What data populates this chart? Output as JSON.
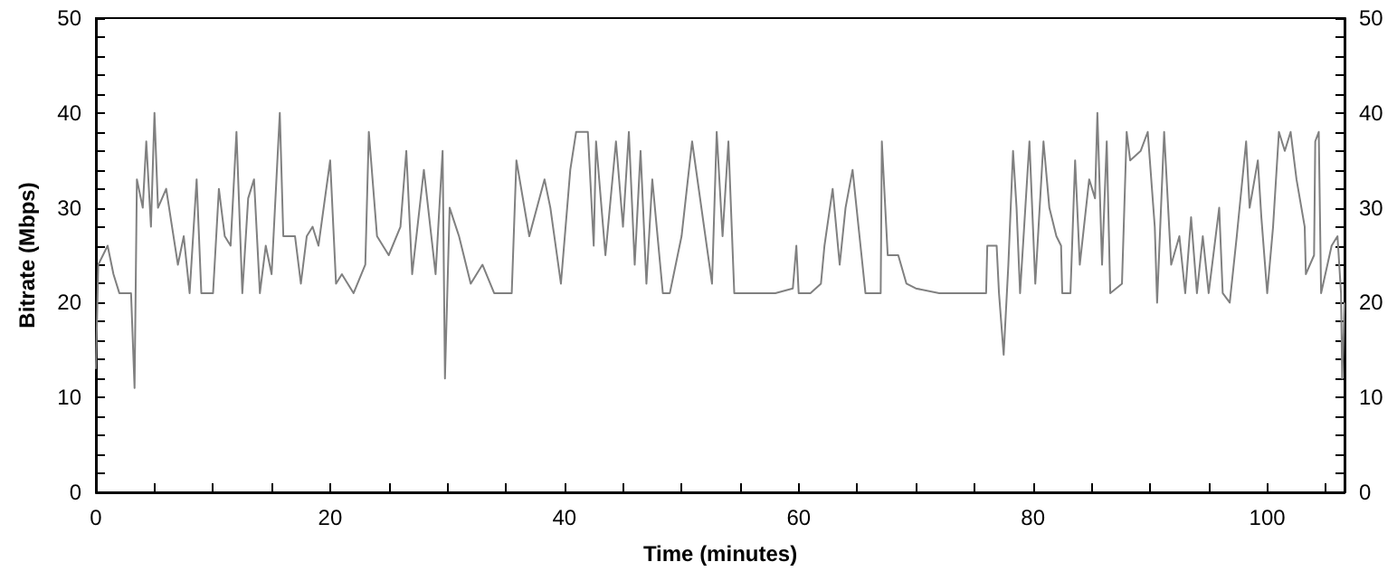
{
  "chart_data": {
    "type": "line",
    "xlabel": "Time (minutes)",
    "ylabel": "Bitrate (Mbps)",
    "xlim": [
      0,
      106.6
    ],
    "xticks": [
      0,
      {
        "value": 5,
        "label": null
      },
      {
        "value": 10,
        "label": null
      },
      {
        "value": 15,
        "label": null
      },
      20,
      {
        "value": 25,
        "label": null
      },
      {
        "value": 30,
        "label": null
      },
      {
        "value": 35,
        "label": null
      },
      40,
      {
        "value": 45,
        "label": null
      },
      {
        "value": 50,
        "label": null
      },
      {
        "value": 55,
        "label": null
      },
      60,
      {
        "value": 65,
        "label": null
      },
      {
        "value": 70,
        "label": null
      },
      {
        "value": 75,
        "label": null
      },
      80,
      {
        "value": 85,
        "label": null
      },
      {
        "value": 90,
        "label": null
      },
      {
        "value": 95,
        "label": null
      },
      100,
      {
        "value": 105,
        "label": null
      }
    ],
    "ylim": [
      0,
      50
    ],
    "yticks": [
      0,
      {
        "value": 2,
        "label": null
      },
      {
        "value": 4,
        "label": null
      },
      {
        "value": 6,
        "label": null
      },
      {
        "value": 8,
        "label": null
      },
      10,
      {
        "value": 12,
        "label": null
      },
      {
        "value": 14,
        "label": null
      },
      {
        "value": 16,
        "label": null
      },
      {
        "value": 18,
        "label": null
      },
      20,
      {
        "value": 22,
        "label": null
      },
      {
        "value": 24,
        "label": null
      },
      {
        "value": 26,
        "label": null
      },
      {
        "value": 28,
        "label": null
      },
      30,
      {
        "value": 32,
        "label": null
      },
      {
        "value": 34,
        "label": null
      },
      {
        "value": 36,
        "label": null
      },
      {
        "value": 38,
        "label": null
      },
      40,
      {
        "value": 42,
        "label": null
      },
      {
        "value": 44,
        "label": null
      },
      {
        "value": 46,
        "label": null
      },
      {
        "value": 48,
        "label": null
      },
      50
    ],
    "y2lim": [
      0,
      50
    ],
    "y2ticks": [
      0,
      {
        "value": 2,
        "label": null
      },
      {
        "value": 4,
        "label": null
      },
      {
        "value": 6,
        "label": null
      },
      {
        "value": 8,
        "label": null
      },
      10,
      {
        "value": 12,
        "label": null
      },
      {
        "value": 14,
        "label": null
      },
      {
        "value": 16,
        "label": null
      },
      {
        "value": 18,
        "label": null
      },
      20,
      {
        "value": 22,
        "label": null
      },
      {
        "value": 24,
        "label": null
      },
      {
        "value": 26,
        "label": null
      },
      {
        "value": 28,
        "label": null
      },
      30,
      {
        "value": 32,
        "label": null
      },
      {
        "value": 34,
        "label": null
      },
      {
        "value": 36,
        "label": null
      },
      {
        "value": 38,
        "label": null
      },
      40,
      {
        "value": 42,
        "label": null
      },
      {
        "value": 44,
        "label": null
      },
      {
        "value": 46,
        "label": null
      },
      {
        "value": 48,
        "label": null
      },
      50
    ],
    "marker": "none",
    "series": [
      {
        "color": "#808080",
        "x": [
          0,
          0.2,
          1,
          1.5,
          2,
          3,
          3.3,
          3.5,
          4,
          4.3,
          4.7,
          5,
          5.3,
          6,
          6.5,
          7,
          7.5,
          8,
          8.6,
          9,
          10,
          10.5,
          11,
          11.5,
          12,
          12.5,
          13,
          13.5,
          14,
          14.5,
          15,
          15.7,
          16,
          17,
          17.5,
          18,
          18.5,
          19,
          20,
          20.5,
          21,
          22,
          23,
          23.3,
          24,
          25,
          26,
          26.5,
          27,
          28,
          29,
          29.6,
          29.8,
          30.2,
          31,
          32,
          33,
          34,
          35.5,
          35.7,
          35.9,
          37,
          38.3,
          38.8,
          39.7,
          40.5,
          41,
          42,
          42.5,
          42.7,
          43.5,
          44.4,
          45,
          45.5,
          46,
          46.5,
          47,
          47.5,
          48.4,
          49,
          50,
          50.9,
          52.6,
          53,
          53.5,
          54,
          54.5,
          56,
          58,
          59.5,
          59.8,
          60,
          61,
          61.9,
          62.2,
          62.9,
          63.5,
          64,
          64.6,
          65.7,
          67,
          67.1,
          67.6,
          68.5,
          69.2,
          70,
          72,
          74,
          76,
          76.1,
          76.9,
          77.1,
          77.5,
          77.9,
          78.3,
          78.6,
          78.9,
          79.7,
          80.2,
          80.9,
          81.4,
          82,
          82.4,
          82.5,
          83.2,
          83.6,
          84,
          84.8,
          85.3,
          85.5,
          85.9,
          86.3,
          86.6,
          87.6,
          88,
          88.3,
          89.2,
          89.8,
          90.4,
          90.6,
          91.2,
          91.8,
          92.5,
          93,
          93.5,
          94,
          94.5,
          95,
          95.9,
          96.2,
          96.8,
          97.4,
          98.2,
          98.5,
          99.2,
          99.5,
          100,
          100.5,
          101,
          101.5,
          102,
          102.5,
          103.2,
          103.3,
          104,
          104.1,
          104.4,
          104.6,
          105.5,
          106,
          106.3,
          106.4,
          106.6
        ],
        "values": [
          13,
          24,
          26,
          23,
          21,
          21,
          11,
          33,
          30,
          37,
          28,
          40,
          30,
          32,
          28,
          24,
          27,
          21,
          33,
          21,
          21,
          32,
          27,
          26,
          38,
          21,
          31,
          33,
          21,
          26,
          23,
          40,
          27,
          27,
          22,
          27,
          28,
          26,
          35,
          22,
          23,
          21,
          24,
          38,
          27,
          25,
          28,
          36,
          23,
          34,
          23,
          36,
          12,
          30,
          27,
          22,
          24,
          21,
          21,
          28,
          35,
          27,
          33,
          30,
          22,
          34,
          38,
          38,
          26,
          37,
          25,
          37,
          28,
          38,
          24,
          36,
          22,
          33,
          21,
          21,
          27,
          37,
          22,
          38,
          27,
          37,
          21,
          21,
          21,
          21.5,
          26,
          21,
          21,
          22,
          26,
          32,
          24,
          30,
          34,
          21,
          21,
          37,
          25,
          25,
          22,
          21.5,
          21,
          21,
          21,
          26,
          26,
          21,
          14.5,
          24,
          36,
          30,
          21,
          37,
          22,
          37,
          30,
          27,
          26,
          21,
          21,
          35,
          24,
          33,
          31,
          40,
          24,
          37,
          21,
          22,
          38,
          35,
          36,
          38,
          28,
          20,
          38,
          24,
          27,
          21,
          29,
          21,
          27,
          21,
          30,
          21,
          20,
          27,
          37,
          30,
          35,
          29,
          21,
          28,
          38,
          36,
          38,
          33,
          28,
          23,
          25,
          37,
          38,
          21,
          26,
          27,
          21,
          12,
          20
        ]
      }
    ]
  }
}
